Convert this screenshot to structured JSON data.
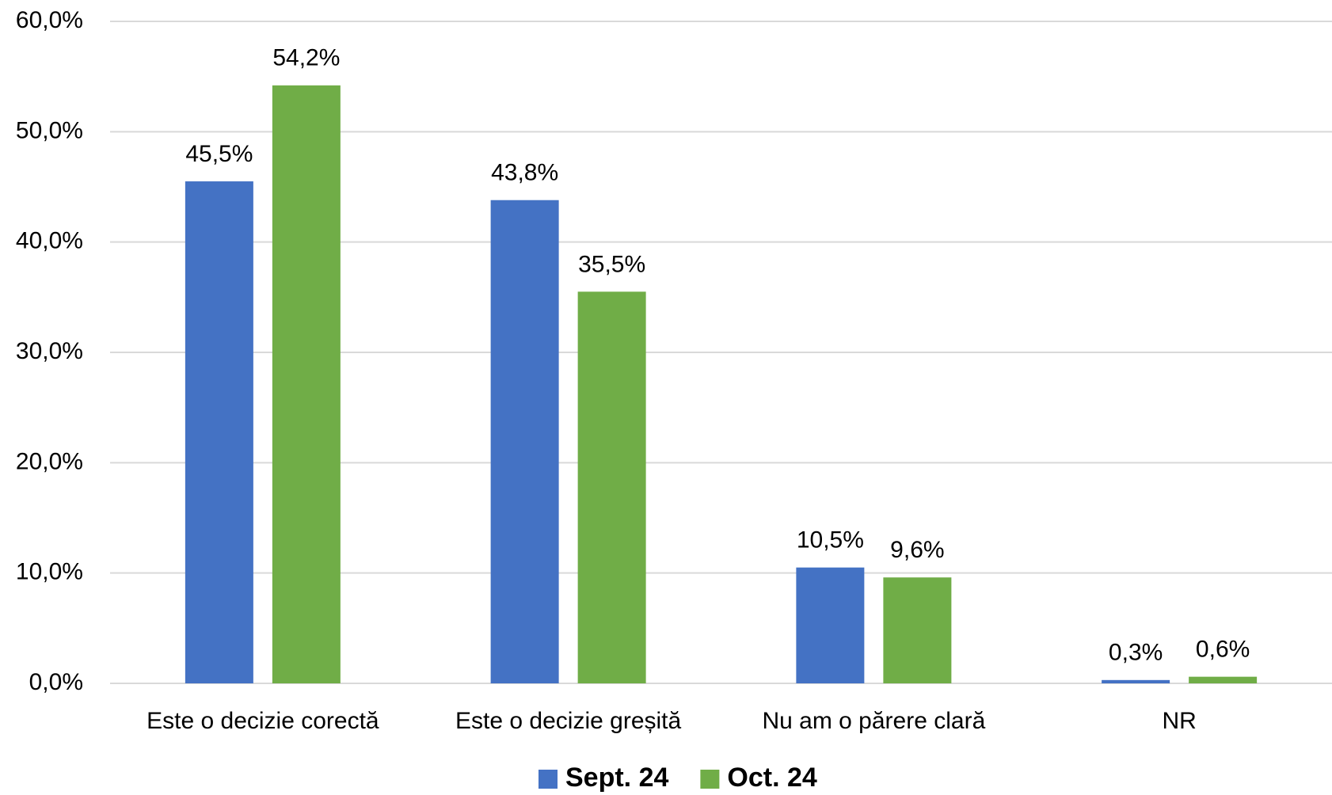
{
  "chart_data": {
    "type": "bar",
    "categories": [
      "Este o decizie corectă",
      "Este o decizie greșită",
      "Nu am o părere clară",
      "NR"
    ],
    "series": [
      {
        "name": "Sept. 24",
        "color": "#4472c4",
        "values": [
          45.5,
          43.8,
          10.5,
          0.3
        ],
        "value_labels": [
          "45,5%",
          "43,8%",
          "10,5%",
          "0,3%"
        ]
      },
      {
        "name": "Oct. 24",
        "color": "#70ad47",
        "values": [
          54.2,
          35.5,
          9.6,
          0.6
        ],
        "value_labels": [
          "54,2%",
          "35,5%",
          "9,6%",
          "0,6%"
        ]
      }
    ],
    "ylim": [
      0,
      60
    ],
    "yticks": [
      {
        "value": 0,
        "label": "0,0%"
      },
      {
        "value": 10,
        "label": "10,0%"
      },
      {
        "value": 20,
        "label": "20,0%"
      },
      {
        "value": 30,
        "label": "30,0%"
      },
      {
        "value": 40,
        "label": "40,0%"
      },
      {
        "value": 50,
        "label": "50,0%"
      },
      {
        "value": 60,
        "label": "60,0%"
      }
    ],
    "grid": true,
    "legend": "bottom"
  }
}
